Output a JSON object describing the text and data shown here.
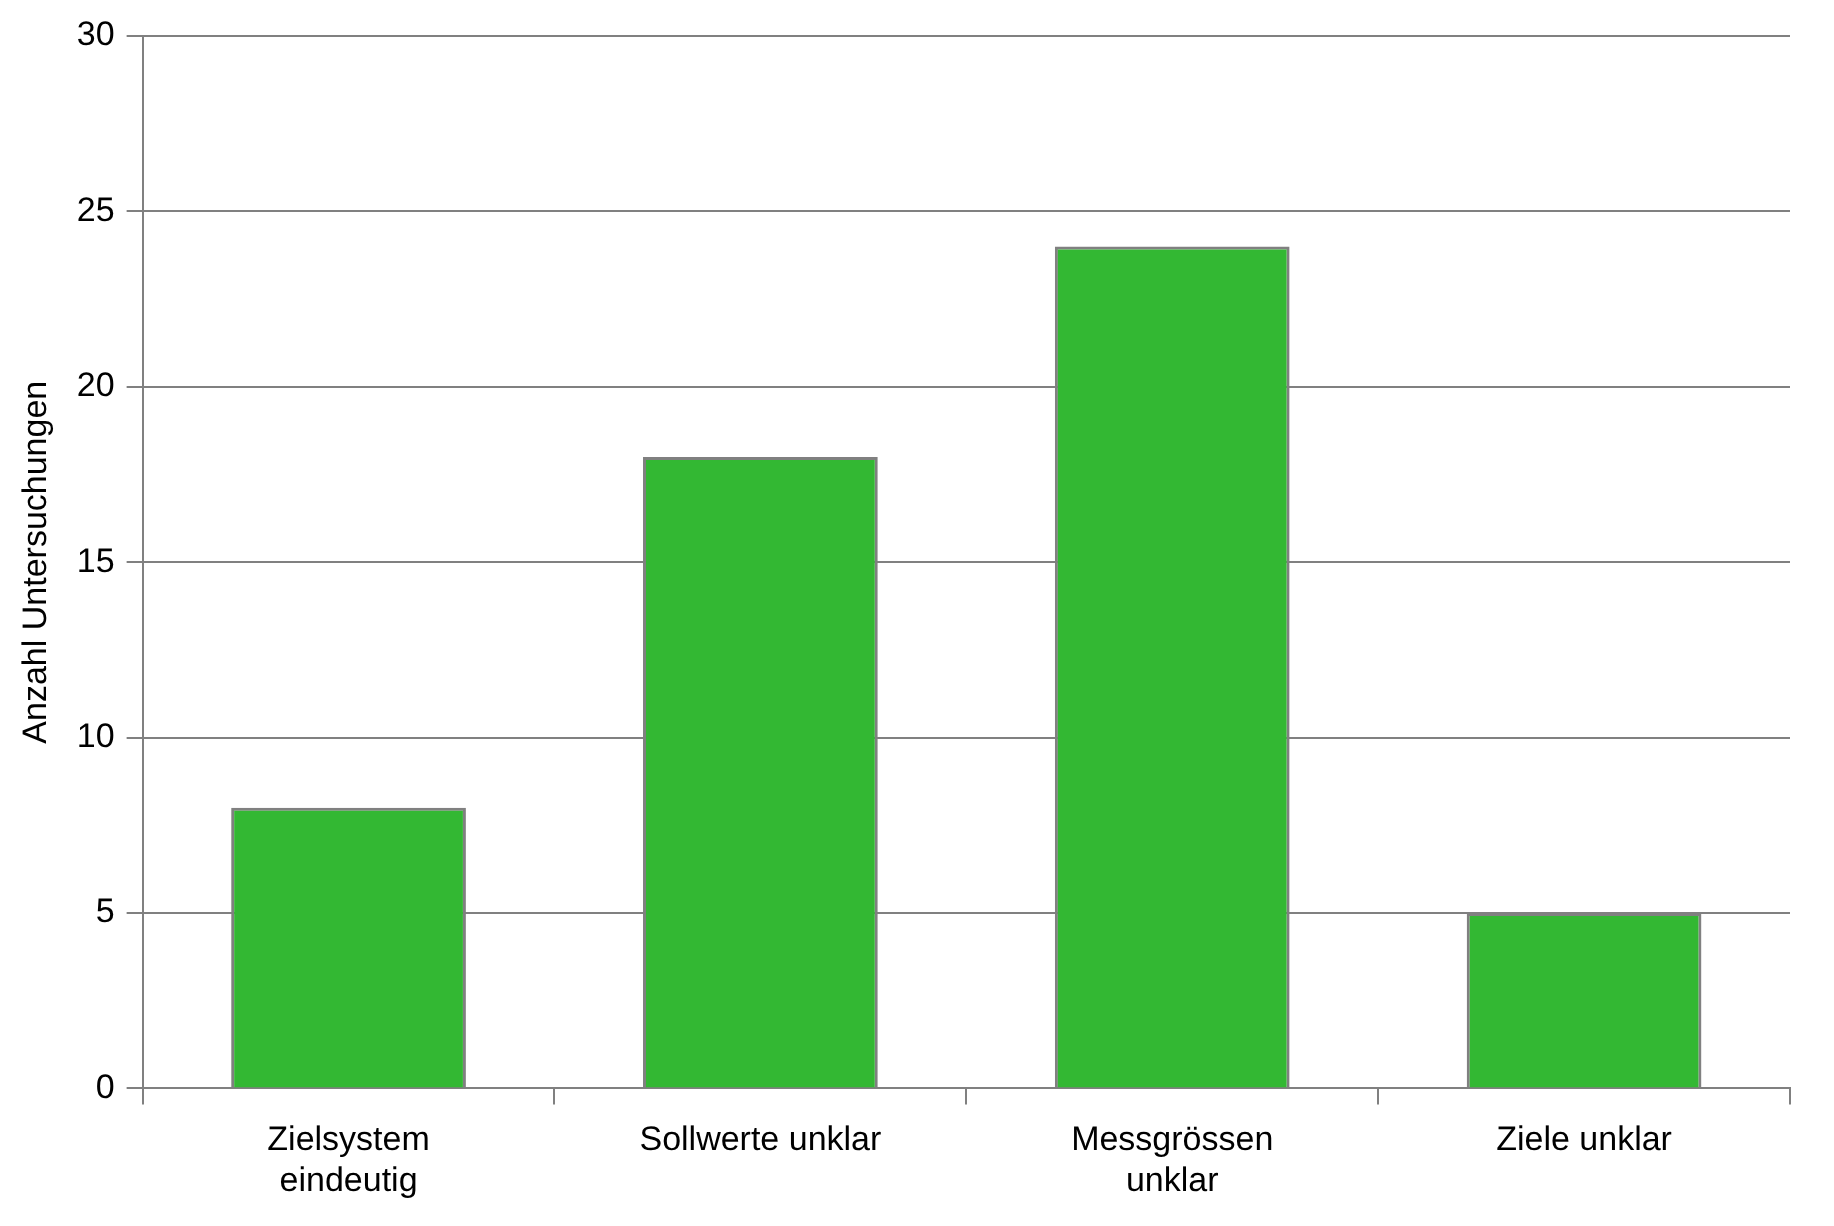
{
  "chart_data": {
    "type": "bar",
    "ylabel": "Anzahl Untersuchungen",
    "categories": [
      "Zielsystem eindeutig",
      "Sollwerte unklar",
      "Messgrössen unklar",
      "Ziele unklar"
    ],
    "values": [
      8,
      18,
      24,
      5
    ],
    "color": "#33b833",
    "ylim": [
      0,
      30
    ],
    "yticks": [
      0,
      5,
      10,
      15,
      20,
      25,
      30
    ],
    "grid": "y"
  }
}
